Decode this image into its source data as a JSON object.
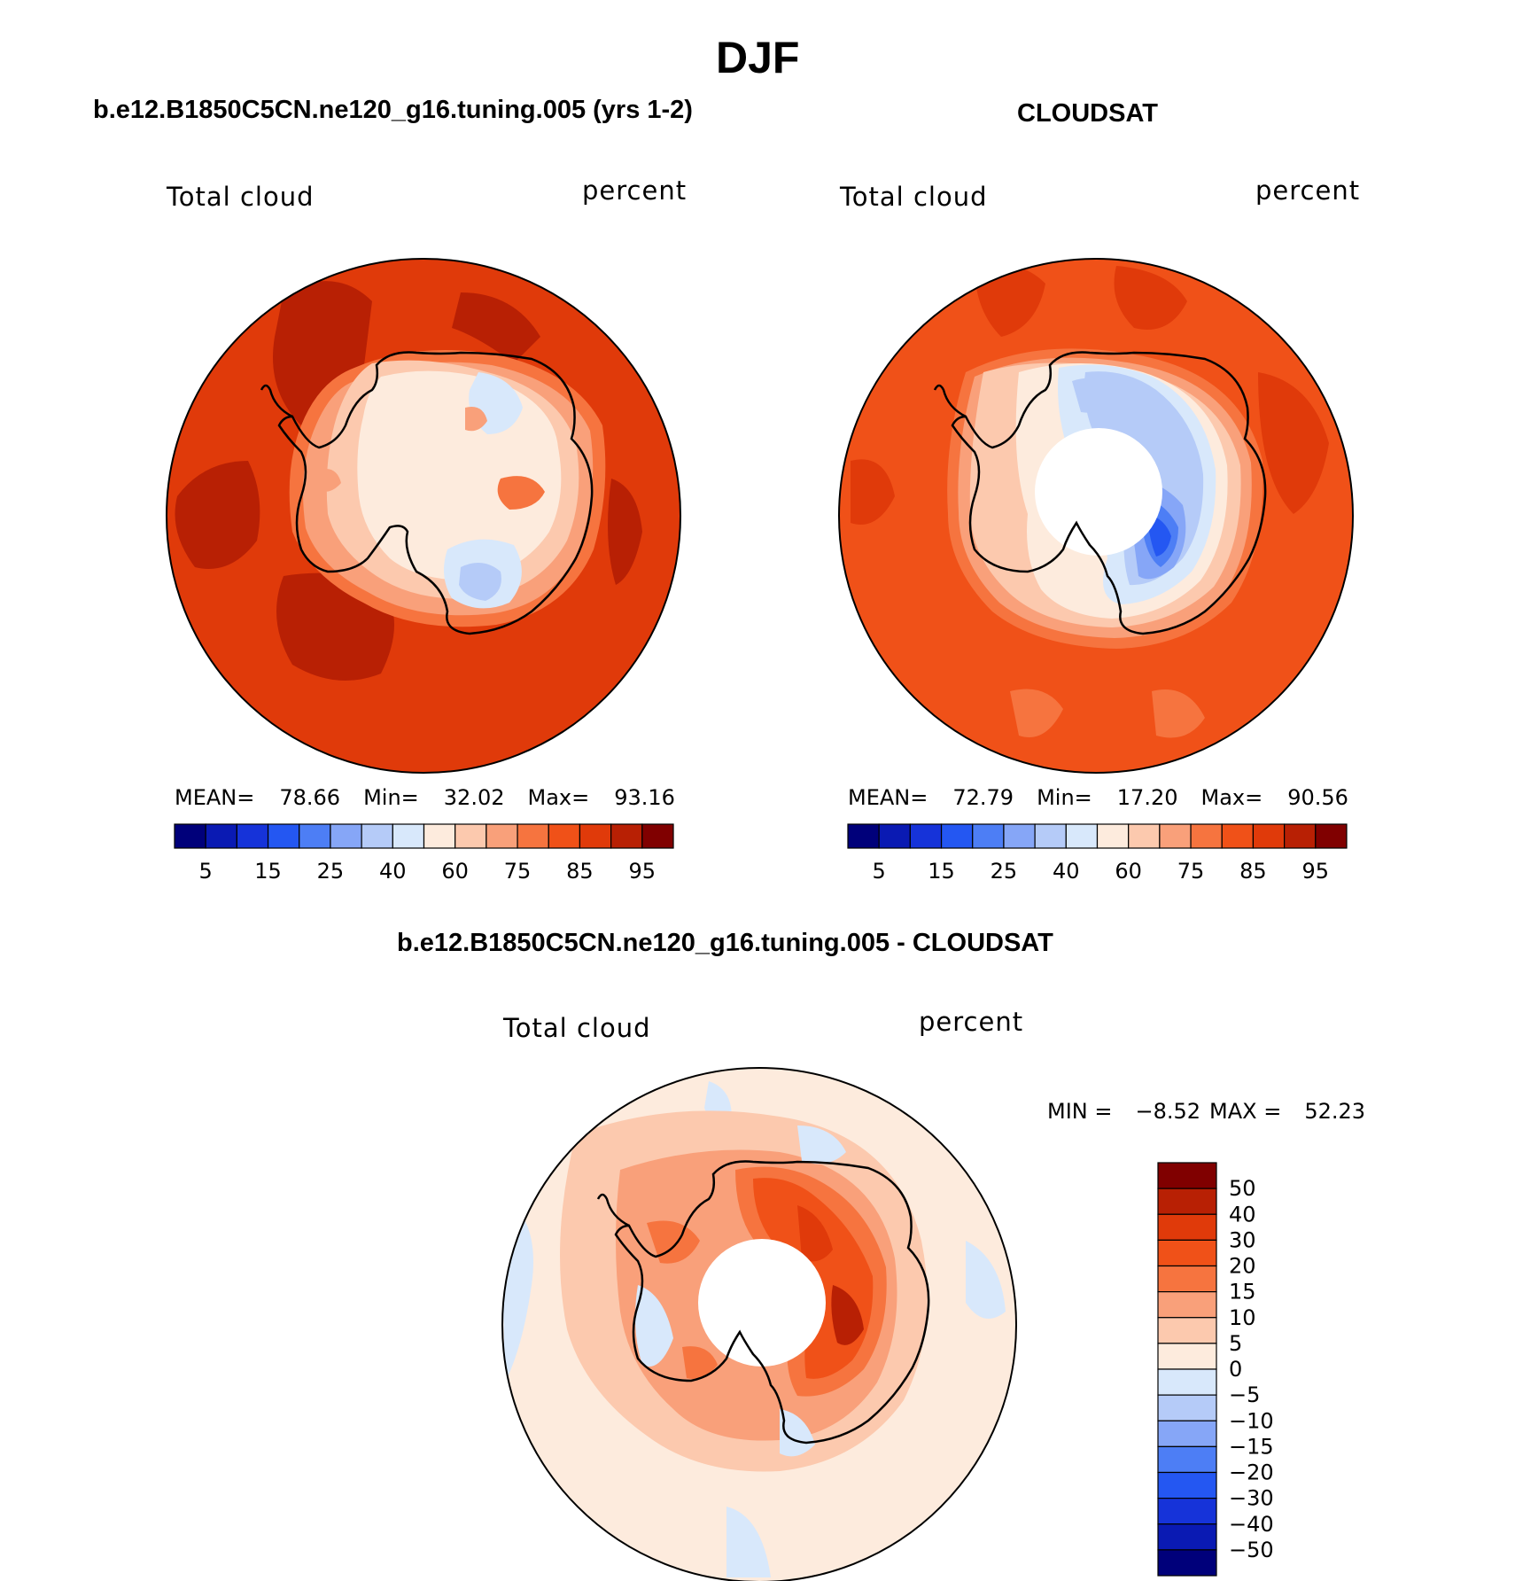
{
  "main_title": "DJF",
  "panels": {
    "model": {
      "title": "b.e12.B1850C5CN.ne120_g16.tuning.005 (yrs 1-2)",
      "variable_label": "Total cloud",
      "units_label": "percent",
      "stats": {
        "mean_label": "MEAN=",
        "mean": "78.66",
        "min_label": "Min=",
        "min": "32.02",
        "max_label": "Max=",
        "max": "93.16"
      }
    },
    "obs": {
      "title": "CLOUDSAT",
      "variable_label": "Total cloud",
      "units_label": "percent",
      "stats": {
        "mean_label": "MEAN=",
        "mean": "72.79",
        "min_label": "Min=",
        "min": "17.20",
        "max_label": "Max=",
        "max": "90.56"
      }
    },
    "diff": {
      "title": "b.e12.B1850C5CN.ne120_g16.tuning.005 - CLOUDSAT",
      "variable_label": "Total cloud",
      "units_label": "percent",
      "stats": {
        "min_label": "MIN =",
        "min": "−8.52",
        "max_label": "MAX =",
        "max": "52.23"
      }
    }
  },
  "colorbars": {
    "absolute": {
      "colors": [
        "#00007a",
        "#0a1ab3",
        "#1633d9",
        "#2457f2",
        "#4d7ef5",
        "#86a6f7",
        "#b5cbf8",
        "#d8e8fb",
        "#fdebdd",
        "#fcc9ae",
        "#f9a07a",
        "#f6743f",
        "#f05118",
        "#e03a0a",
        "#b82004",
        "#800000"
      ],
      "tick_labels": [
        "5",
        "15",
        "25",
        "40",
        "60",
        "75",
        "85",
        "95"
      ]
    },
    "difference": {
      "colors": [
        "#800000",
        "#b82004",
        "#e03a0a",
        "#f05118",
        "#f6743f",
        "#f9a07a",
        "#fcc9ae",
        "#fdebdd",
        "#d8e8fb",
        "#b5cbf8",
        "#86a6f7",
        "#4d7ef5",
        "#2457f2",
        "#1633d9",
        "#0a1ab3",
        "#00007a"
      ],
      "tick_labels": [
        "50",
        "40",
        "30",
        "20",
        "15",
        "10",
        "5",
        "0",
        "−5",
        "−10",
        "−15",
        "−20",
        "−30",
        "−40",
        "−50"
      ]
    }
  }
}
